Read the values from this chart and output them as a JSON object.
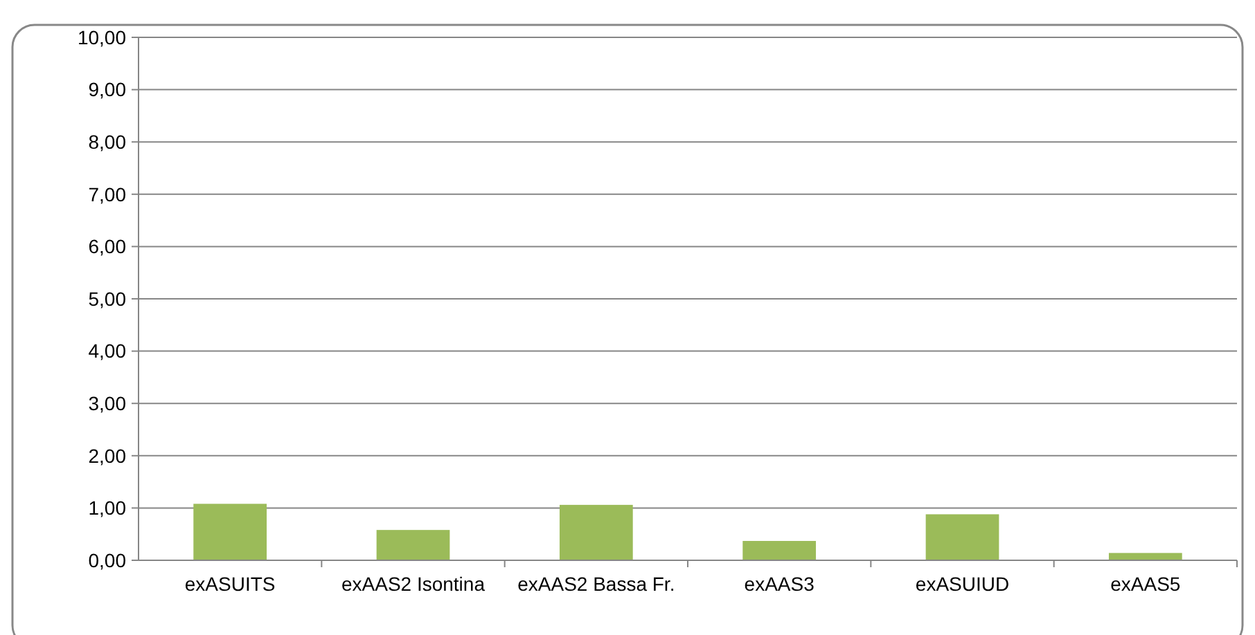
{
  "chart_data": {
    "type": "bar",
    "categories": [
      "exASUITS",
      "exAAS2 Isontina",
      "exAAS2 Bassa Fr.",
      "exAAS3",
      "exASUIUD",
      "exAAS5"
    ],
    "values": [
      1.08,
      0.58,
      1.06,
      0.37,
      0.88,
      0.14
    ],
    "color": "#9bbb59",
    "ylim": [
      0,
      10
    ],
    "yticks": [
      {
        "value": 0,
        "label": "0,00"
      },
      {
        "value": 1,
        "label": "1,00"
      },
      {
        "value": 2,
        "label": "2,00"
      },
      {
        "value": 3,
        "label": "3,00"
      },
      {
        "value": 4,
        "label": "4,00"
      },
      {
        "value": 5,
        "label": "5,00"
      },
      {
        "value": 6,
        "label": "6,00"
      },
      {
        "value": 7,
        "label": "7,00"
      },
      {
        "value": 8,
        "label": "8,00"
      },
      {
        "value": 9,
        "label": "9,00"
      },
      {
        "value": 10,
        "label": "10,00"
      }
    ],
    "grid": "y"
  }
}
